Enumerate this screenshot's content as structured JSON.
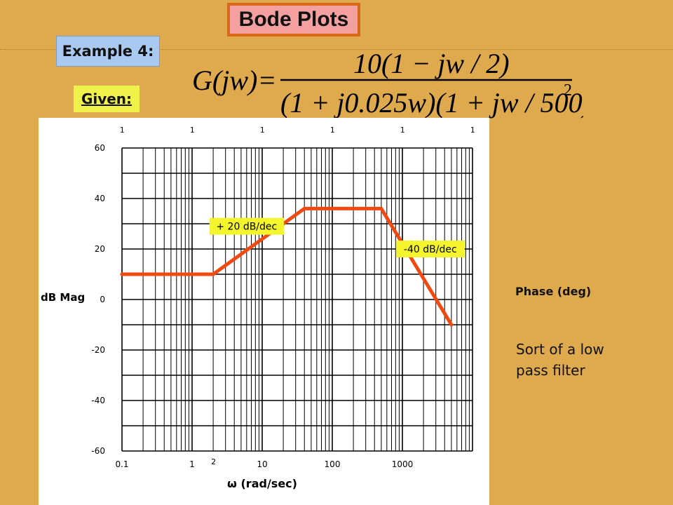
{
  "slide": {
    "title": "Bode Plots",
    "example_label": "Example 4:",
    "given_label": "Given:",
    "formula": {
      "lhs": "G(jw)",
      "equals": "=",
      "numerator": "10(1 − jw / 2)",
      "denominator_main": "(1 + j0.025w)(1 + jw / 500)",
      "denominator_exp": "2"
    },
    "phase_label": "Phase (deg)",
    "note_line1": "Sort of a low",
    "note_line2": "pass filter",
    "colors": {
      "background": "#dfa94e",
      "curve": "#f04a12",
      "callout": "#f5f52e"
    }
  },
  "chart_data": {
    "type": "line",
    "xscale": "log",
    "xlabel": "ω (rad/sec)",
    "ylabel": "dB Mag",
    "xlim": [
      0.1,
      10000
    ],
    "ylim": [
      -60,
      60
    ],
    "yticks": [
      "60",
      "40",
      "20",
      "0",
      "-20",
      "-40",
      "-60"
    ],
    "xticks": [
      "0.1",
      "1",
      "10",
      "100",
      "1000"
    ],
    "top_labels": [
      "1",
      "1",
      "1",
      "1",
      "1",
      "1"
    ],
    "extra_label": "2",
    "grid": true,
    "series": [
      {
        "x": [
          0.1,
          2,
          40,
          500,
          5000
        ],
        "y": [
          10,
          10,
          36,
          36,
          -10
        ]
      }
    ],
    "annotations": [
      {
        "text": "+ 20 dB/dec",
        "x": 6,
        "y": 29
      },
      {
        "text": "-40 dB/dec",
        "x": 2500,
        "y": 20
      }
    ]
  }
}
